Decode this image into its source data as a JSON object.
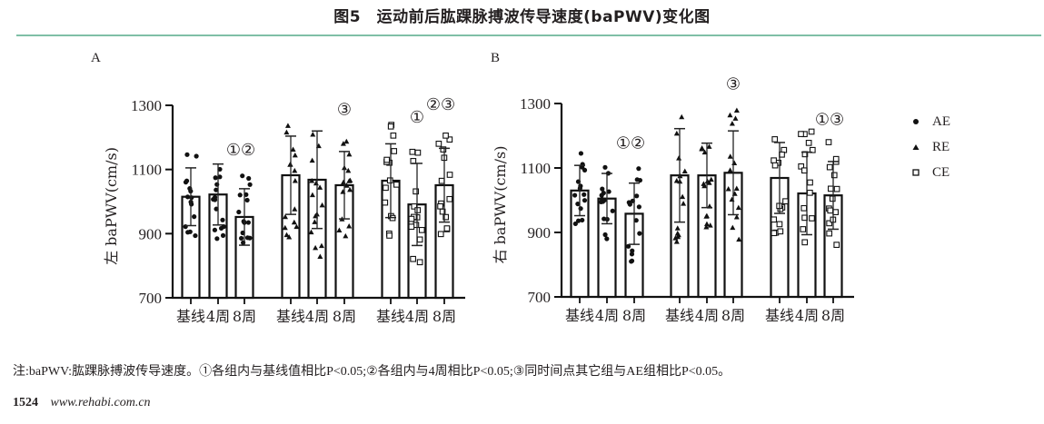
{
  "figure": {
    "title": "图5　运动前后肱踝脉搏波传导速度(baPWV)变化图",
    "rule_color": "#7fbfa6",
    "note": "注:baPWV:肱踝脉搏波传导速度。①各组内与基线值相比P<0.05;②各组内与4周相比P<0.05;③同时间点其它组与AE组相比P<0.05。",
    "page_number": "1524",
    "url": "www.rehabi.com.cn"
  },
  "legend": [
    {
      "name": "AE",
      "marker": "circle-filled"
    },
    {
      "name": "RE",
      "marker": "triangle-filled"
    },
    {
      "name": "CE",
      "marker": "square-open"
    }
  ],
  "chart_data": [
    {
      "panel": "A",
      "type": "bar",
      "ylabel": "左 baPWV(cm/s)",
      "ylim": [
        700,
        1300
      ],
      "yticks": [
        700,
        900,
        1100,
        1300
      ],
      "categories": [
        "基线",
        "4周",
        "8周"
      ],
      "series": [
        {
          "name": "AE",
          "values": [
            1015,
            1022,
            952
          ],
          "sd": [
            90,
            95,
            88
          ],
          "annotations": [
            "",
            "",
            "①②"
          ]
        },
        {
          "name": "RE",
          "values": [
            1082,
            1068,
            1051
          ],
          "sd": [
            122,
            152,
            105
          ],
          "annotations": [
            "",
            "",
            "③"
          ]
        },
        {
          "name": "CE",
          "values": [
            1065,
            991,
            1051
          ],
          "sd": [
            115,
            128,
            115
          ],
          "annotations": [
            "",
            "①",
            "②③"
          ]
        }
      ],
      "grid": false,
      "legend_position": "right"
    },
    {
      "panel": "B",
      "type": "bar",
      "ylabel": "右 baPWV(cm/s)",
      "ylim": [
        700,
        1300
      ],
      "yticks": [
        700,
        900,
        1100,
        1300
      ],
      "categories": [
        "基线",
        "4周",
        "8周"
      ],
      "series": [
        {
          "name": "AE",
          "values": [
            1030,
            1005,
            958
          ],
          "sd": [
            78,
            78,
            95
          ],
          "annotations": [
            "",
            "",
            "①②"
          ]
        },
        {
          "name": "RE",
          "values": [
            1077,
            1077,
            1085
          ],
          "sd": [
            145,
            100,
            130
          ],
          "annotations": [
            "",
            "",
            "③"
          ]
        },
        {
          "name": "CE",
          "values": [
            1069,
            1021,
            1015
          ],
          "sd": [
            110,
            128,
            105
          ],
          "annotations": [
            "",
            "",
            "①③"
          ]
        }
      ],
      "grid": false,
      "legend_position": "right"
    }
  ]
}
